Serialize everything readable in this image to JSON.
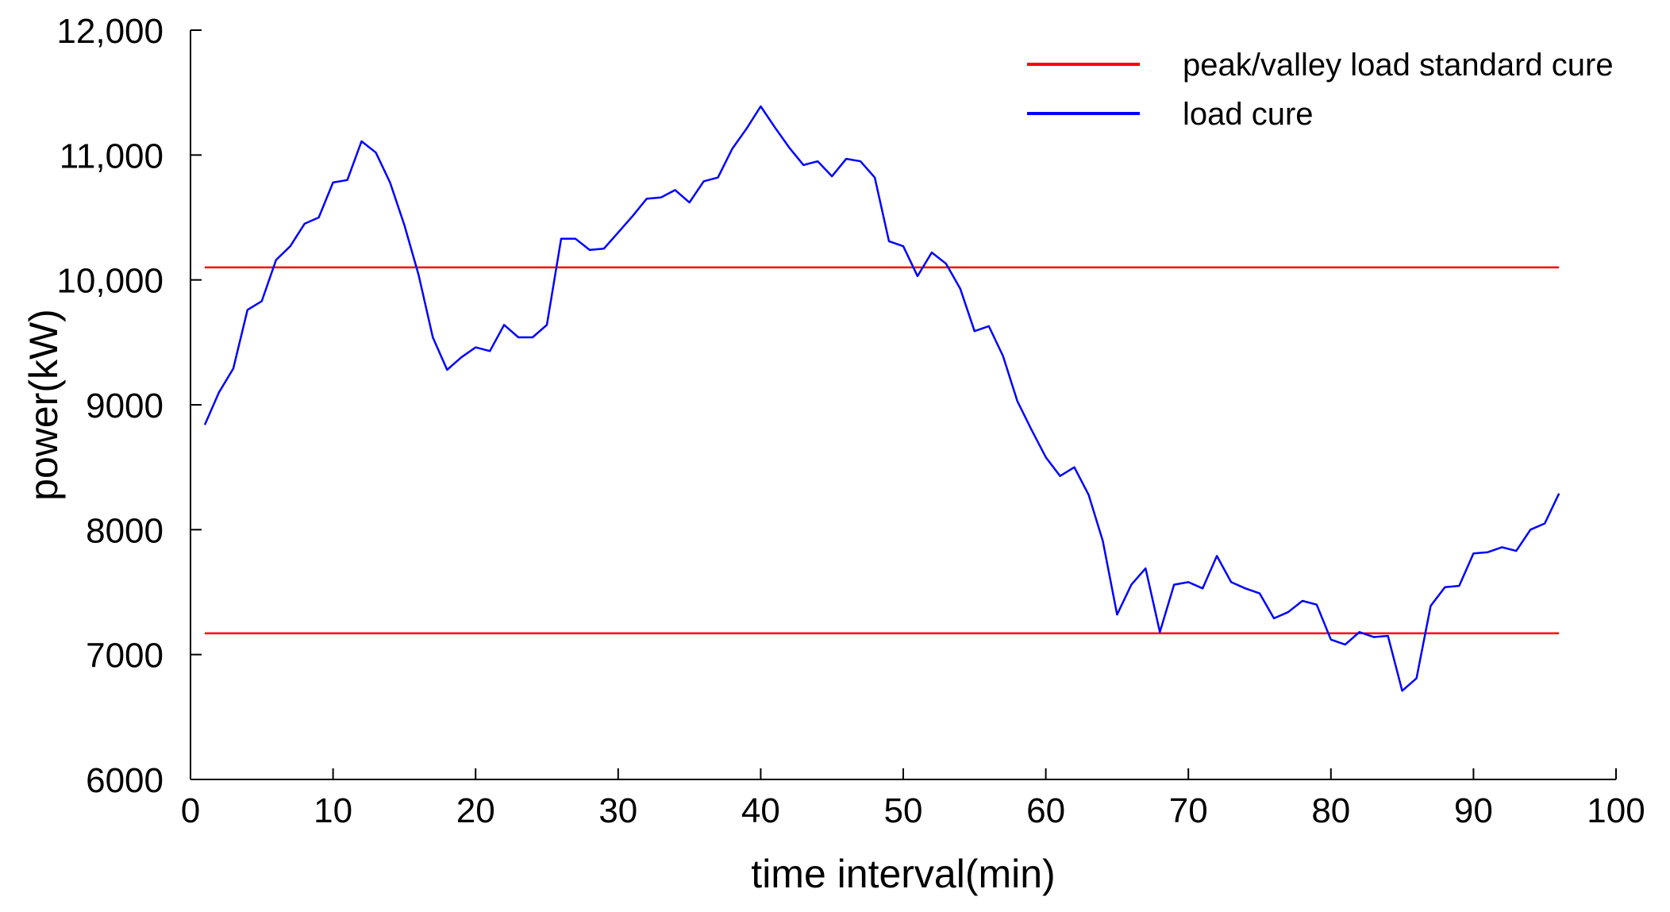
{
  "chart_data": {
    "type": "line",
    "title": "",
    "xlabel": "time interval(min)",
    "ylabel": "power(kW)",
    "xlim": [
      0,
      100
    ],
    "ylim": [
      6000,
      12000
    ],
    "x_ticks": [
      0,
      10,
      20,
      30,
      40,
      50,
      60,
      70,
      80,
      90,
      100
    ],
    "x_tick_labels": [
      "0",
      "10",
      "20",
      "30",
      "40",
      "50",
      "60",
      "70",
      "80",
      "90",
      "100"
    ],
    "y_ticks": [
      6000,
      7000,
      8000,
      9000,
      10000,
      11000,
      12000
    ],
    "y_tick_labels": [
      "6000",
      "7000",
      "8000",
      "9000",
      "10,000",
      "11,000",
      "12,000"
    ],
    "grid": false,
    "legend": {
      "position": "top-right",
      "entries": [
        {
          "label": "peak/valley load standard cure",
          "color": "#ff0000"
        },
        {
          "label": "load cure",
          "color": "#0000ff"
        }
      ]
    },
    "standard_lines": [
      {
        "name": "peak load standard",
        "color": "#ff0000",
        "x": [
          1,
          96
        ],
        "values": [
          10100,
          10100
        ]
      },
      {
        "name": "valley load standard",
        "color": "#ff0000",
        "x": [
          1,
          96
        ],
        "values": [
          7170,
          7170
        ]
      }
    ],
    "series": [
      {
        "name": "load cure",
        "color": "#0000ff",
        "x": [
          1,
          2,
          3,
          4,
          5,
          6,
          7,
          8,
          9,
          10,
          11,
          12,
          13,
          14,
          15,
          16,
          17,
          18,
          19,
          20,
          21,
          22,
          23,
          24,
          25,
          26,
          27,
          28,
          29,
          30,
          31,
          32,
          33,
          34,
          35,
          36,
          37,
          38,
          39,
          40,
          41,
          42,
          43,
          44,
          45,
          46,
          47,
          48,
          49,
          50,
          51,
          52,
          53,
          54,
          55,
          56,
          57,
          58,
          59,
          60,
          61,
          62,
          63,
          64,
          65,
          66,
          67,
          68,
          69,
          70,
          71,
          72,
          73,
          74,
          75,
          76,
          77,
          78,
          79,
          80,
          81,
          82,
          83,
          84,
          85,
          86,
          87,
          88,
          89,
          90,
          91,
          92,
          93,
          94,
          95,
          96
        ],
        "values": [
          8840,
          9100,
          9290,
          9760,
          9830,
          10160,
          10270,
          10450,
          10500,
          10780,
          10800,
          11110,
          11020,
          10780,
          10440,
          10040,
          9540,
          9280,
          9380,
          9460,
          9430,
          9640,
          9540,
          9540,
          9640,
          10330,
          10330,
          10240,
          10250,
          10380,
          10510,
          10650,
          10660,
          10720,
          10620,
          10790,
          10820,
          11050,
          11210,
          11390,
          11220,
          11060,
          10920,
          10950,
          10830,
          10970,
          10950,
          10820,
          10310,
          10270,
          10030,
          10220,
          10130,
          9930,
          9590,
          9630,
          9390,
          9030,
          8800,
          8580,
          8430,
          8500,
          8280,
          7910,
          7320,
          7560,
          7690,
          7180,
          7560,
          7580,
          7530,
          7790,
          7580,
          7530,
          7490,
          7290,
          7340,
          7430,
          7400,
          7120,
          7080,
          7180,
          7140,
          7150,
          6710,
          6810,
          7390,
          7540,
          7550,
          7810,
          7820,
          7860,
          7830,
          8000,
          8050,
          8290
        ]
      }
    ]
  }
}
